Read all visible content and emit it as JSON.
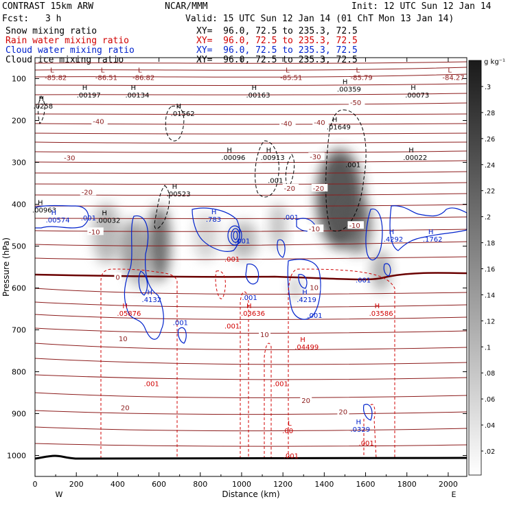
{
  "header": {
    "model": "CONTRAST 15km ARW",
    "center": "NCAR/MMM",
    "init": "Init: 12 UTC Sun 12 Jan 14",
    "fcst_label": "Fcst:",
    "fcst_value": "3 h",
    "valid": "Valid: 15 UTC Sun 12 Jan 14 (01 ChT Mon 13 Jan 14)"
  },
  "fields": [
    {
      "name": "Snow mixing ratio",
      "xy": "XY=  96.0, 72.5 to 235.3, 72.5",
      "color": "#000000"
    },
    {
      "name": "Rain water mixing ratio",
      "xy": "XY=  96.0, 72.5 to 235.3, 72.5",
      "color": "#d00000"
    },
    {
      "name": "Cloud water mixing ratio",
      "xy": "XY=  96.0, 72.5 to 235.3, 72.5",
      "color": "#0022cc"
    },
    {
      "name": "Cloud ice mixing ratio",
      "xy": "XY=  96.0, 72.5 to 235.3, 72.5",
      "color": "#000000"
    }
  ],
  "chart_data": {
    "type": "cross-section contour",
    "xlabel": "Distance (km)",
    "ylabel": "Pressure (hPa)",
    "xlim": [
      0,
      2090
    ],
    "ylim": [
      1050,
      50
    ],
    "x_ticks": [
      0,
      200,
      400,
      600,
      800,
      1000,
      1200,
      1400,
      1600,
      1800,
      2000
    ],
    "y_ticks": [
      100,
      200,
      300,
      400,
      500,
      600,
      700,
      800,
      900,
      1000
    ],
    "x_end_labels": {
      "left": "W",
      "right": "E"
    },
    "colorbar": {
      "unit": "g kg⁻¹",
      "labels": [
        ".3",
        ".28",
        ".26",
        ".24",
        ".22",
        ".2",
        ".18",
        ".16",
        ".14",
        ".12",
        ".1",
        ".08",
        ".06",
        ".04",
        ".02"
      ]
    },
    "temperature_isotherms": [
      {
        "label": "-40",
        "x": 280,
        "p": 203
      },
      {
        "label": "-30",
        "x": 140,
        "p": 290
      },
      {
        "label": "-20",
        "x": 225,
        "p": 372
      },
      {
        "label": "-10",
        "x": 260,
        "p": 467
      },
      {
        "label": "0",
        "x": 390,
        "p": 575
      },
      {
        "label": "10",
        "x": 405,
        "p": 722
      },
      {
        "label": "10",
        "x": 1090,
        "p": 712
      },
      {
        "label": "20",
        "x": 415,
        "p": 887
      },
      {
        "label": "20",
        "x": 1290,
        "p": 870
      },
      {
        "label": "-40",
        "x": 1190,
        "p": 208
      },
      {
        "label": "-40",
        "x": 1350,
        "p": 206
      },
      {
        "label": "-30",
        "x": 1330,
        "p": 288
      },
      {
        "label": "-20",
        "x": 1205,
        "p": 363
      },
      {
        "label": "-20",
        "x": 1345,
        "p": 363
      },
      {
        "label": "-10",
        "x": 1325,
        "p": 460
      },
      {
        "label": "-10",
        "x": 1520,
        "p": 452
      },
      {
        "label": "-50",
        "x": 1525,
        "p": 158
      },
      {
        "label": "10",
        "x": 1330,
        "p": 600
      },
      {
        "label": "20",
        "x": 1470,
        "p": 897
      }
    ],
    "maxima_minima": [
      {
        "mark": "L",
        "value": "-85.82",
        "x": 80,
        "p": 92
      },
      {
        "mark": "L",
        "value": "-86.51",
        "x": 325,
        "p": 92
      },
      {
        "mark": "L",
        "value": "-86.82",
        "x": 505,
        "p": 92
      },
      {
        "mark": "L",
        "value": "-85.51",
        "x": 1220,
        "p": 92
      },
      {
        "mark": "L",
        "value": "-85.79",
        "x": 1560,
        "p": 92
      },
      {
        "mark": "L",
        "value": "-84.27",
        "x": 2005,
        "p": 92
      },
      {
        "mark": "H",
        "value": ".0258",
        "x": 25,
        "p": 160
      },
      {
        "mark": "H",
        "value": ".00197",
        "x": 235,
        "p": 134
      },
      {
        "mark": "H",
        "value": ".00134",
        "x": 470,
        "p": 134
      },
      {
        "mark": "H",
        "value": ".00163",
        "x": 1055,
        "p": 134
      },
      {
        "mark": "H",
        "value": ".00359",
        "x": 1495,
        "p": 120
      },
      {
        "mark": "H",
        "value": ".00073",
        "x": 1825,
        "p": 134
      },
      {
        "mark": "H",
        "value": ".01562",
        "x": 690,
        "p": 178
      },
      {
        "mark": "H",
        "value": ".01649",
        "x": 1445,
        "p": 210
      },
      {
        "mark": "H",
        "value": ".00096",
        "x": 935,
        "p": 283
      },
      {
        "mark": "H",
        "value": ".00913",
        "x": 1125,
        "p": 283
      },
      {
        "mark": "H",
        "value": ".00022",
        "x": 1815,
        "p": 283
      },
      {
        "mark": "H",
        "value": ".00523",
        "x": 670,
        "p": 370
      },
      {
        "mark": "H",
        "value": ".00963",
        "x": 20,
        "p": 408
      },
      {
        "mark": "H",
        "value": ".00032",
        "x": 330,
        "p": 433
      },
      {
        "mark": "H",
        "value": ".00574",
        "x": 85,
        "p": 432
      },
      {
        "mark": "H",
        "value": ".783",
        "x": 860,
        "p": 430
      },
      {
        "mark": "H",
        "value": ".4292",
        "x": 1720,
        "p": 478
      },
      {
        "mark": "H",
        "value": ".1762",
        "x": 1910,
        "p": 478
      },
      {
        "mark": "H",
        "value": ".4132",
        "x": 550,
        "p": 622
      },
      {
        "mark": "H",
        "value": ".4219",
        "x": 1300,
        "p": 622
      },
      {
        "mark": "H",
        "value": ".05876",
        "x": 430,
        "p": 655
      },
      {
        "mark": "H",
        "value": ".03636",
        "x": 1030,
        "p": 655
      },
      {
        "mark": "H",
        "value": ".03586",
        "x": 1650,
        "p": 655
      },
      {
        "mark": "H",
        "value": ".04499",
        "x": 1290,
        "p": 735
      },
      {
        "mark": "H",
        "value": ".0329",
        "x": 1560,
        "p": 932
      },
      {
        "mark": "L",
        "value": ".00",
        "x": 1230,
        "p": 935
      }
    ],
    "contour_labels": [
      {
        "series": "cloud_water",
        "value": ".001",
        "x": 255,
        "p": 432
      },
      {
        "series": "cloud_water",
        "value": ".001",
        "x": 1000,
        "p": 487
      },
      {
        "series": "cloud_water",
        "value": ".001",
        "x": 1235,
        "p": 430
      },
      {
        "series": "cloud_water",
        "value": ".001",
        "x": 1035,
        "p": 622
      },
      {
        "series": "cloud_water",
        "value": ".001",
        "x": 1350,
        "p": 665
      },
      {
        "series": "cloud_water",
        "value": ".001",
        "x": 1585,
        "p": 580
      },
      {
        "series": "cloud_water",
        "value": ".001",
        "x": 700,
        "p": 682
      },
      {
        "series": "rain_water",
        "value": ".001",
        "x": 950,
        "p": 530
      },
      {
        "series": "rain_water",
        "value": ".001",
        "x": 950,
        "p": 690
      },
      {
        "series": "rain_water",
        "value": ".001",
        "x": 560,
        "p": 828
      },
      {
        "series": "rain_water",
        "value": ".001",
        "x": 1185,
        "p": 828
      },
      {
        "series": "rain_water",
        "value": ".001",
        "x": 1600,
        "p": 970
      },
      {
        "series": "rain_water",
        "value": ".001",
        "x": 1235,
        "p": 1000
      },
      {
        "series": "snow",
        "value": ".001",
        "x": 1160,
        "p": 343
      },
      {
        "series": "snow",
        "value": ".001",
        "x": 1535,
        "p": 305
      }
    ]
  }
}
